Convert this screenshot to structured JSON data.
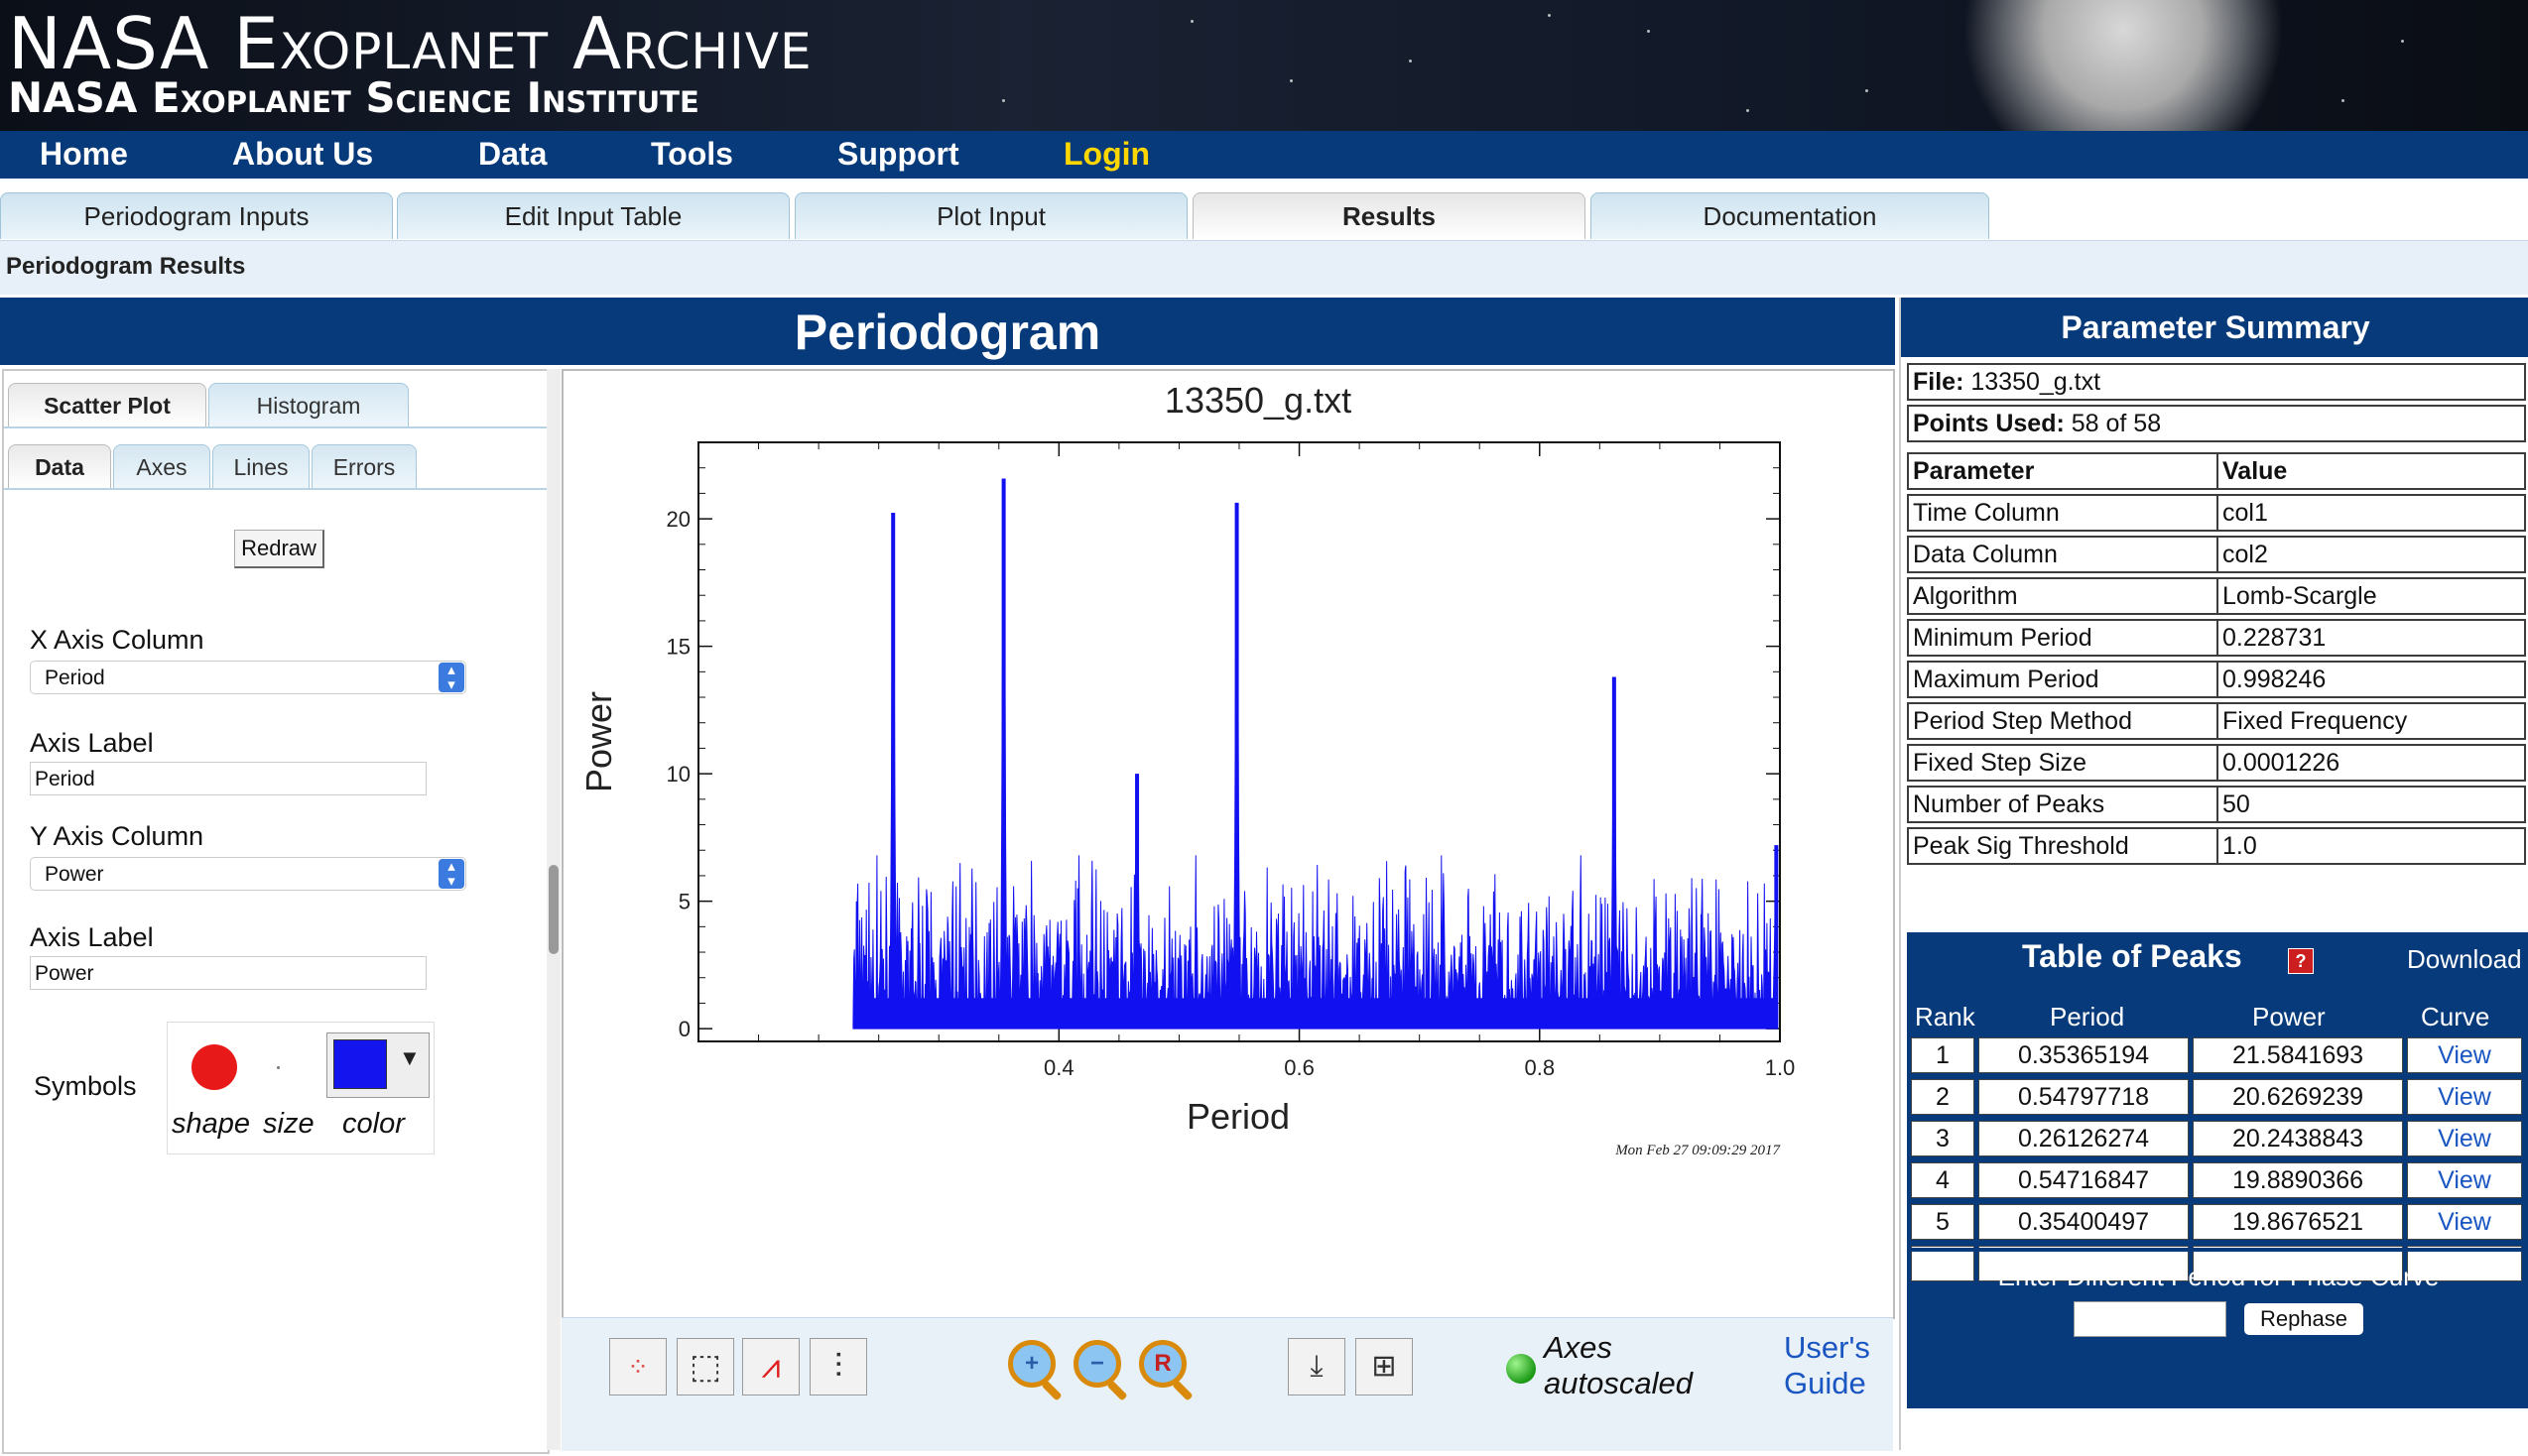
{
  "header": {
    "title": "NASA Exoplanet Archive",
    "subtitle": "NASA Exoplanet Science Institute"
  },
  "nav": {
    "items": [
      "Home",
      "About Us",
      "Data",
      "Tools",
      "Support"
    ],
    "login": "Login"
  },
  "tabs": [
    "Periodogram Inputs",
    "Edit Input Table",
    "Plot Input",
    "Results",
    "Documentation"
  ],
  "active_tab": "Results",
  "breadcrumb": "Periodogram Results",
  "section_title": "Periodogram",
  "left_panel": {
    "plot_tabs": [
      "Scatter Plot",
      "Histogram"
    ],
    "sub_tabs": [
      "Data",
      "Axes",
      "Lines",
      "Errors"
    ],
    "redraw": "Redraw",
    "x_axis_column_label": "X Axis Column",
    "x_axis_column_value": "Period",
    "x_axis_label_label": "Axis Label",
    "x_axis_label_value": "Period",
    "y_axis_column_label": "Y Axis Column",
    "y_axis_column_value": "Power",
    "y_axis_label_label": "Axis Label",
    "y_axis_label_value": "Power",
    "symbols_label": "Symbols",
    "shape_caption": "shape",
    "size_caption": "size",
    "color_caption": "color",
    "shape_color": "#e81919",
    "symbol_color": "#1414ee"
  },
  "plot_toolbar": {
    "status_line1": "Axes",
    "status_line2": "autoscaled",
    "guide_line1": "User's",
    "guide_line2": "Guide"
  },
  "chart_data": {
    "type": "line",
    "title": "13350_g.txt",
    "xlabel": "Period",
    "ylabel": "Power",
    "timestamp": "Mon Feb 27 09:09:29 2017",
    "xlim": [
      0.1,
      1.0
    ],
    "ylim": [
      -0.5,
      23
    ],
    "xticks": [
      0.4,
      0.6,
      0.8,
      1.0
    ],
    "yticks": [
      0,
      5,
      10,
      15,
      20
    ],
    "color": "#1010f0",
    "baseline_noise_max": 6.0,
    "peaks": [
      {
        "x": 0.262,
        "y": 20.24
      },
      {
        "x": 0.354,
        "y": 21.58
      },
      {
        "x": 0.465,
        "y": 10.0
      },
      {
        "x": 0.548,
        "y": 20.63
      },
      {
        "x": 0.862,
        "y": 13.8
      },
      {
        "x": 0.997,
        "y": 7.2
      }
    ]
  },
  "parameter_summary": {
    "title": "Parameter Summary",
    "file_label": "File:",
    "file_value": "13350_g.txt",
    "points_label": "Points Used:",
    "points_value": "58 of 58",
    "col_parameter": "Parameter",
    "col_value": "Value",
    "rows": [
      [
        "Time Column",
        "col1"
      ],
      [
        "Data Column",
        "col2"
      ],
      [
        "Algorithm",
        "Lomb-Scargle"
      ],
      [
        "Minimum Period",
        "0.228731"
      ],
      [
        "Maximum Period",
        "0.998246"
      ],
      [
        "Period Step Method",
        "Fixed Frequency"
      ],
      [
        "Fixed Step Size",
        "0.0001226"
      ],
      [
        "Number of Peaks",
        "50"
      ],
      [
        "Peak Sig Threshold",
        "1.0"
      ]
    ]
  },
  "peaks_table": {
    "title": "Table of Peaks",
    "help_icon": "?",
    "download": "Download",
    "headers": [
      "Rank",
      "Period",
      "Power",
      "Curve"
    ],
    "rows": [
      [
        "1",
        "0.35365194",
        "21.5841693",
        "View"
      ],
      [
        "2",
        "0.54797718",
        "20.6269239",
        "View"
      ],
      [
        "3",
        "0.26126274",
        "20.2438843",
        "View"
      ],
      [
        "4",
        "0.54716847",
        "19.8890366",
        "View"
      ],
      [
        "5",
        "0.35400497",
        "19.8676521",
        "View"
      ]
    ],
    "rephase_label": "Enter Different Period for Phase Curve",
    "rephase_button": "Rephase"
  }
}
